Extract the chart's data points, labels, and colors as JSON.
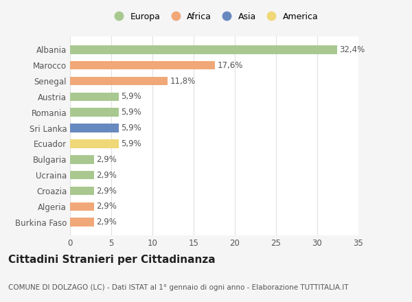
{
  "categories": [
    "Burkina Faso",
    "Algeria",
    "Croazia",
    "Ucraina",
    "Bulgaria",
    "Ecuador",
    "Sri Lanka",
    "Romania",
    "Austria",
    "Senegal",
    "Marocco",
    "Albania"
  ],
  "values": [
    2.9,
    2.9,
    2.9,
    2.9,
    2.9,
    5.9,
    5.9,
    5.9,
    5.9,
    11.8,
    17.6,
    32.4
  ],
  "labels": [
    "2,9%",
    "2,9%",
    "2,9%",
    "2,9%",
    "2,9%",
    "5,9%",
    "5,9%",
    "5,9%",
    "5,9%",
    "11,8%",
    "17,6%",
    "32,4%"
  ],
  "colors": [
    "#f0a878",
    "#f0a878",
    "#a8c890",
    "#a8c890",
    "#a8c890",
    "#f0d878",
    "#6888c0",
    "#a8c890",
    "#a8c890",
    "#f0a878",
    "#f0a878",
    "#a8c890"
  ],
  "legend_labels": [
    "Europa",
    "Africa",
    "Asia",
    "America"
  ],
  "legend_colors": [
    "#a8c890",
    "#f0a878",
    "#6888c0",
    "#f0d878"
  ],
  "xlim": [
    0,
    35
  ],
  "xticks": [
    0,
    5,
    10,
    15,
    20,
    25,
    30,
    35
  ],
  "title": "Cittadini Stranieri per Cittadinanza",
  "subtitle": "COMUNE DI DOLZAGO (LC) - Dati ISTAT al 1° gennaio di ogni anno - Elaborazione TUTTITALIA.IT",
  "background_color": "#f5f5f5",
  "bar_background": "#ffffff",
  "grid_color": "#e0e0e0",
  "text_color": "#555555",
  "bar_height": 0.55,
  "label_fontsize": 8.5,
  "tick_fontsize": 8.5,
  "title_fontsize": 11,
  "subtitle_fontsize": 7.5
}
